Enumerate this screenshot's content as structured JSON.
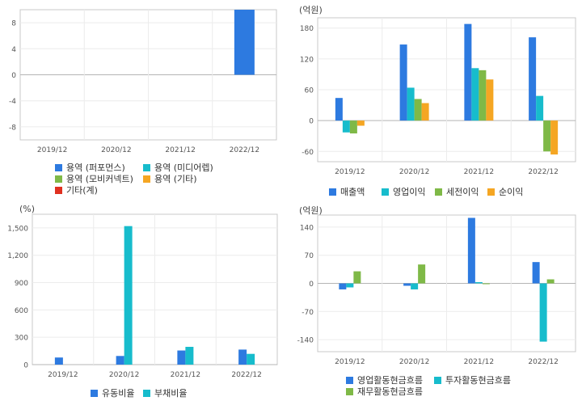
{
  "chart_data": [
    {
      "id": "c1",
      "type": "bar",
      "unit": "",
      "categories": [
        "2019/12",
        "2020/12",
        "2021/12",
        "2022/12"
      ],
      "ylim": [
        -10,
        10
      ],
      "yticks": [
        8,
        4,
        0,
        -4,
        -8
      ],
      "ytick_labels": [
        "8",
        "4",
        "0",
        "-4",
        "-8"
      ],
      "grid": true,
      "legend": "bottom",
      "series": [
        {
          "name": "용역 (퍼포먼스)",
          "color": "#2d7ae0",
          "values": [
            null,
            null,
            null,
            10
          ]
        },
        {
          "name": "용역 (미디어렙)",
          "color": "#17bccc",
          "values": [
            null,
            null,
            null,
            null
          ]
        },
        {
          "name": "용역 (모비커넥트)",
          "color": "#7fb947",
          "values": [
            null,
            null,
            null,
            null
          ]
        },
        {
          "name": "용역 (기타)",
          "color": "#f5a623",
          "values": [
            null,
            null,
            null,
            null
          ]
        },
        {
          "name": "기타(계)",
          "color": "#e03020",
          "values": [
            null,
            null,
            null,
            null
          ]
        }
      ]
    },
    {
      "id": "c2",
      "type": "bar",
      "unit": "(억원)",
      "categories": [
        "2019/12",
        "2020/12",
        "2021/12",
        "2022/12"
      ],
      "ylim": [
        -80,
        200
      ],
      "yticks": [
        180,
        120,
        60,
        0,
        -60
      ],
      "ytick_labels": [
        "180",
        "120",
        "60",
        "0",
        "-60"
      ],
      "grid": true,
      "legend": "bottom",
      "series": [
        {
          "name": "매출액",
          "color": "#2d7ae0",
          "values": [
            44,
            148,
            188,
            162
          ]
        },
        {
          "name": "영업이익",
          "color": "#17bccc",
          "values": [
            -23,
            64,
            102,
            48
          ]
        },
        {
          "name": "세전이익",
          "color": "#7fb947",
          "values": [
            -25,
            42,
            98,
            -60
          ]
        },
        {
          "name": "순이익",
          "color": "#f5a623",
          "values": [
            -10,
            34,
            80,
            -66
          ]
        }
      ]
    },
    {
      "id": "c3",
      "type": "bar",
      "unit": "(%)",
      "categories": [
        "2019/12",
        "2020/12",
        "2021/12",
        "2022/12"
      ],
      "ylim": [
        0,
        1650
      ],
      "yticks": [
        1500,
        1200,
        900,
        600,
        300,
        0
      ],
      "ytick_labels": [
        "1,500",
        "1,200",
        "900",
        "600",
        "300",
        "0"
      ],
      "grid": true,
      "legend": "bottom",
      "series": [
        {
          "name": "유동비율",
          "color": "#2d7ae0",
          "values": [
            78,
            95,
            155,
            165
          ]
        },
        {
          "name": "부채비율",
          "color": "#17bccc",
          "values": [
            null,
            1520,
            195,
            118
          ]
        }
      ]
    },
    {
      "id": "c4",
      "type": "bar",
      "unit": "(억원)",
      "categories": [
        "2019/12",
        "2020/12",
        "2021/12",
        "2022/12"
      ],
      "ylim": [
        -170,
        170
      ],
      "yticks": [
        140,
        70,
        0,
        -70,
        -140
      ],
      "ytick_labels": [
        "140",
        "70",
        "0",
        "-70",
        "-140"
      ],
      "grid": true,
      "legend": "bottom",
      "series": [
        {
          "name": "영업활동현금흐름",
          "color": "#2d7ae0",
          "values": [
            -15,
            -6,
            163,
            53
          ]
        },
        {
          "name": "투자활동현금흐름",
          "color": "#17bccc",
          "values": [
            -10,
            -15,
            3,
            -145
          ]
        },
        {
          "name": "재무활동현금흐름",
          "color": "#7fb947",
          "values": [
            30,
            47,
            -2,
            10
          ]
        }
      ]
    }
  ]
}
